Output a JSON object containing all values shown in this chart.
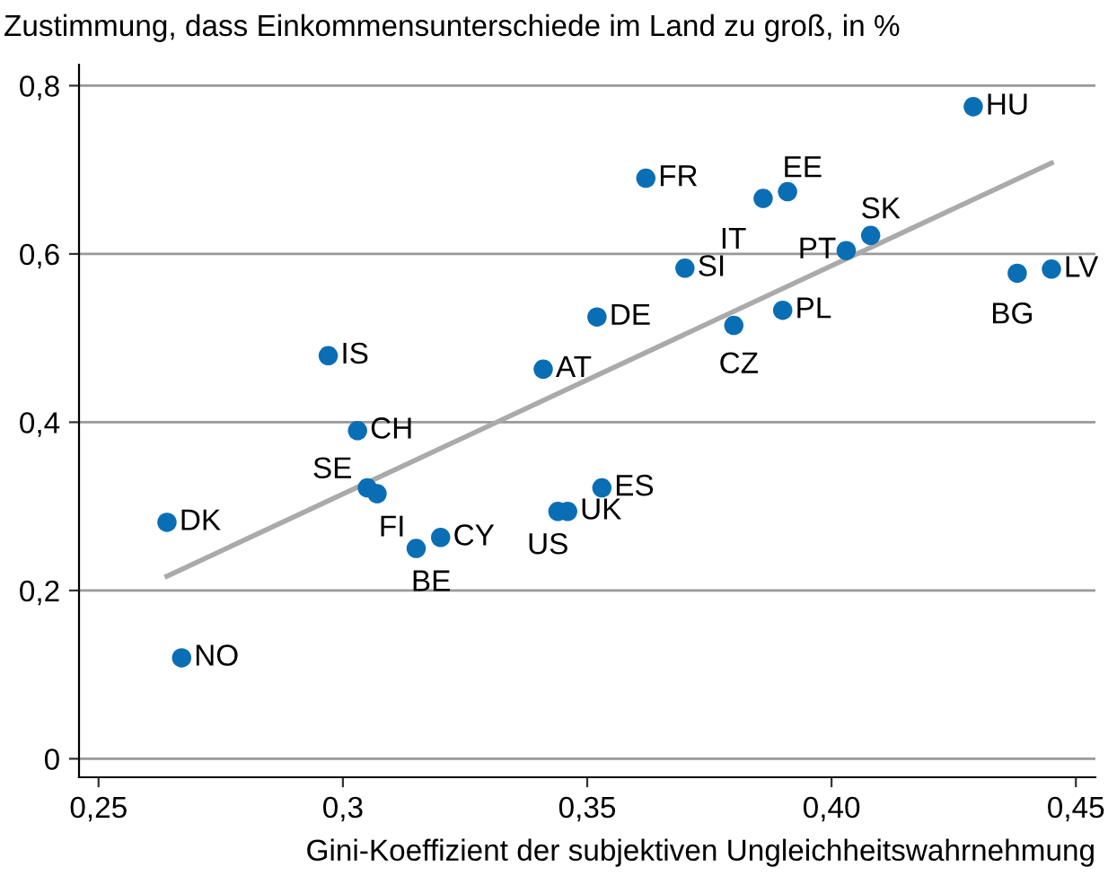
{
  "chart_data": {
    "type": "scatter",
    "title": "Zustimmung, dass Einkommensunterschiede im Land zu groß, in %",
    "xlabel": "Gini-Koeffizient der subjektiven Ungleichheitswahrnehmung",
    "xlim": [
      0.246,
      0.454
    ],
    "ylim": [
      -0.022,
      0.825
    ],
    "xticks": [
      {
        "value": 0.25,
        "label": "0,25"
      },
      {
        "value": 0.3,
        "label": "0,3"
      },
      {
        "value": 0.35,
        "label": "0,35"
      },
      {
        "value": 0.4,
        "label": "0,40"
      },
      {
        "value": 0.45,
        "label": "0,45"
      }
    ],
    "yticks": [
      0,
      {
        "value": 0.2,
        "label": "0,2"
      },
      {
        "value": 0.4,
        "label": "0,4"
      },
      {
        "value": 0.6,
        "label": "0,6"
      },
      {
        "value": 0.8,
        "label": "0,8"
      }
    ],
    "grid": "y",
    "series": [
      {
        "marker": "circle",
        "color": "#0a6eb4",
        "x": [
          0.429,
          0.362,
          0.386,
          0.391,
          0.408,
          0.403,
          0.37,
          0.445,
          0.438,
          0.352,
          0.39,
          0.38,
          0.297,
          0.341,
          0.303,
          0.305,
          0.307,
          0.264,
          0.32,
          0.315,
          0.344,
          0.346,
          0.353,
          0.267
        ],
        "values": [
          0.775,
          0.69,
          0.666,
          0.674,
          0.622,
          0.604,
          0.583,
          0.582,
          0.577,
          0.525,
          0.533,
          0.515,
          0.479,
          0.463,
          0.39,
          0.322,
          0.315,
          0.281,
          0.263,
          0.25,
          0.294,
          0.294,
          0.322,
          0.12
        ]
      },
      {
        "type": "line",
        "color": "#aaaaaa",
        "x": [
          0.264,
          0.445
        ],
        "values": [
          0.217,
          0.708
        ]
      }
    ],
    "annotations": [
      {
        "text": "HU",
        "x": 0.429,
        "y": 0.775
      },
      {
        "text": "FR",
        "x": 0.362,
        "y": 0.69
      },
      {
        "text": "IT",
        "x": 0.386,
        "y": 0.666
      },
      {
        "text": "EE",
        "x": 0.391,
        "y": 0.674
      },
      {
        "text": "SK",
        "x": 0.408,
        "y": 0.622
      },
      {
        "text": "PT",
        "x": 0.403,
        "y": 0.604
      },
      {
        "text": "SI",
        "x": 0.37,
        "y": 0.583
      },
      {
        "text": "LV",
        "x": 0.445,
        "y": 0.582
      },
      {
        "text": "BG",
        "x": 0.438,
        "y": 0.577
      },
      {
        "text": "DE",
        "x": 0.352,
        "y": 0.525
      },
      {
        "text": "PL",
        "x": 0.39,
        "y": 0.533
      },
      {
        "text": "CZ",
        "x": 0.38,
        "y": 0.515
      },
      {
        "text": "IS",
        "x": 0.297,
        "y": 0.479
      },
      {
        "text": "AT",
        "x": 0.341,
        "y": 0.463
      },
      {
        "text": "CH",
        "x": 0.303,
        "y": 0.39
      },
      {
        "text": "SE",
        "x": 0.305,
        "y": 0.322
      },
      {
        "text": "FI",
        "x": 0.307,
        "y": 0.315
      },
      {
        "text": "DK",
        "x": 0.264,
        "y": 0.281
      },
      {
        "text": "CY",
        "x": 0.32,
        "y": 0.263
      },
      {
        "text": "BE",
        "x": 0.315,
        "y": 0.25
      },
      {
        "text": "US",
        "x": 0.344,
        "y": 0.294
      },
      {
        "text": "UK",
        "x": 0.346,
        "y": 0.294
      },
      {
        "text": "ES",
        "x": 0.353,
        "y": 0.322
      },
      {
        "text": "NO",
        "x": 0.267,
        "y": 0.12
      }
    ]
  }
}
